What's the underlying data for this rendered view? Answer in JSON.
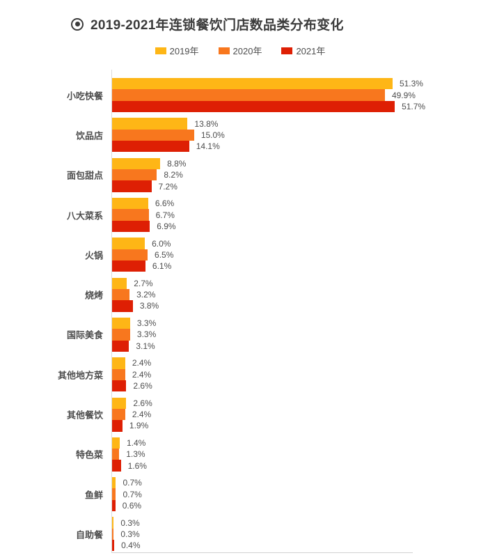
{
  "header": {
    "icon": "bullseye-icon",
    "title": "2019-2021年连锁餐饮门店数品类分布变化"
  },
  "colors": {
    "title_text": "#3b3b3b",
    "label_text": "#4d4d4d",
    "axis_line": "#d9d9d9",
    "background": "#ffffff",
    "series_2019": "#FEB616",
    "series_2020": "#F8771E",
    "series_2021": "#DE1F04"
  },
  "chart_data": {
    "type": "bar",
    "orientation": "horizontal",
    "title": "2019-2021年连锁餐饮门店数品类分布变化",
    "categories": [
      "小吃快餐",
      "饮品店",
      "面包甜点",
      "八大菜系",
      "火锅",
      "烧烤",
      "国际美食",
      "其他地方菜",
      "其他餐饮",
      "特色菜",
      "鱼鲜",
      "自助餐"
    ],
    "series": [
      {
        "name": "2019年",
        "color": "#FEB616",
        "values": [
          51.3,
          13.8,
          8.8,
          6.6,
          6.0,
          2.7,
          3.3,
          2.4,
          2.6,
          1.4,
          0.7,
          0.3
        ]
      },
      {
        "name": "2020年",
        "color": "#F8771E",
        "values": [
          49.9,
          15.0,
          8.2,
          6.7,
          6.5,
          3.2,
          3.3,
          2.4,
          2.4,
          1.3,
          0.7,
          0.3
        ]
      },
      {
        "name": "2021年",
        "color": "#DE1F04",
        "values": [
          51.7,
          14.1,
          7.2,
          6.9,
          6.1,
          3.8,
          3.1,
          2.6,
          1.9,
          1.6,
          0.6,
          0.4
        ]
      }
    ],
    "value_suffix": "%",
    "value_decimals": 1,
    "xlim": [
      0,
      55
    ],
    "grid": false,
    "legend_position": "top",
    "value_labels": "outside-end"
  }
}
